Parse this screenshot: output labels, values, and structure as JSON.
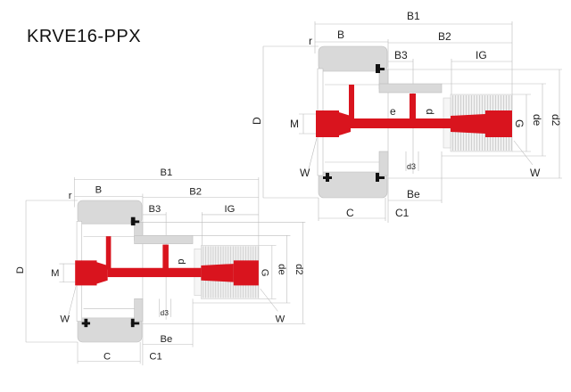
{
  "title": "KRVE16-PPX",
  "colors": {
    "shaft": "#d9141e",
    "housing": "#d9d9d9",
    "seal": "#111111"
  },
  "drawings": [
    {
      "labels": {
        "B1": "B1",
        "B": "B",
        "r": "r",
        "B2": "B2",
        "B3": "B3",
        "IG": "IG",
        "D": "D",
        "M": "M",
        "e": "e",
        "d": "d",
        "G": "G",
        "de": "de",
        "d2": "d2",
        "W_left": "W",
        "W_right": "W",
        "d3": "d3",
        "Be": "Be",
        "C": "C",
        "C1": "C1"
      }
    },
    {
      "labels": {
        "B1": "B1",
        "B": "B",
        "r": "r",
        "B2": "B2",
        "B3": "B3",
        "IG": "IG",
        "D": "D",
        "M": "M",
        "d": "d",
        "G": "G",
        "de": "de",
        "d2": "d2",
        "W_left": "W",
        "W_right": "W",
        "d3": "d3",
        "Be": "Be",
        "C": "C",
        "C1": "C1"
      }
    }
  ]
}
